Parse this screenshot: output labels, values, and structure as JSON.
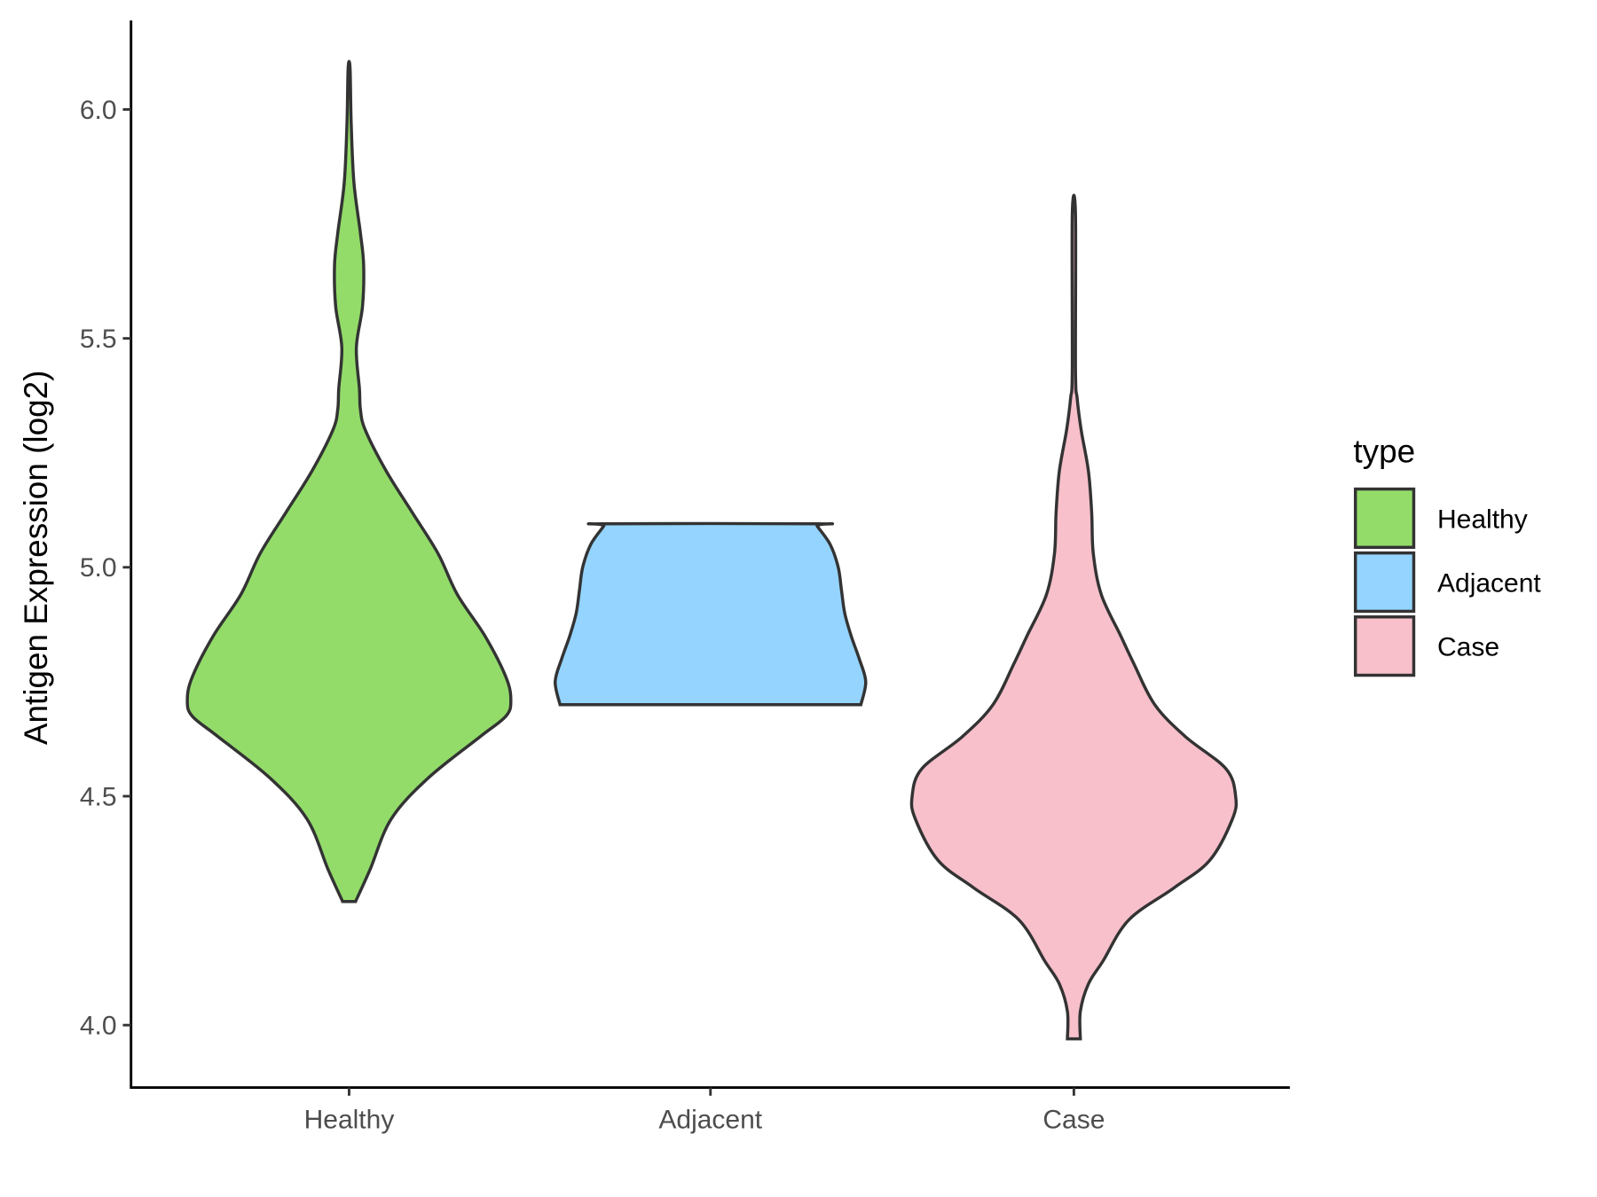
{
  "chart_data": {
    "type": "violin",
    "title": "",
    "xlabel": "",
    "ylabel": "Antigen Expression (log2)",
    "ylim": [
      3.88,
      6.2
    ],
    "yticks": [
      "4.0",
      "4.5",
      "5.0",
      "5.5",
      "6.0"
    ],
    "grid": false,
    "categories": [
      "Healthy",
      "Adjacent",
      "Case"
    ],
    "legend": {
      "title": "type",
      "placement": "right",
      "entries": [
        "Healthy",
        "Adjacent",
        "Case"
      ]
    },
    "series": [
      {
        "name": "Healthy",
        "color": "#93DC6A",
        "density_profile": [
          [
            4.27,
            0.04
          ],
          [
            4.34,
            0.13
          ],
          [
            4.45,
            0.26
          ],
          [
            4.54,
            0.49
          ],
          [
            4.63,
            0.81
          ],
          [
            4.675,
            0.97
          ],
          [
            4.71,
            1.0
          ],
          [
            4.76,
            0.97
          ],
          [
            4.85,
            0.84
          ],
          [
            4.94,
            0.67
          ],
          [
            5.03,
            0.55
          ],
          [
            5.12,
            0.39
          ],
          [
            5.21,
            0.23
          ],
          [
            5.3,
            0.1
          ],
          [
            5.345,
            0.07
          ],
          [
            5.39,
            0.064
          ],
          [
            5.48,
            0.045
          ],
          [
            5.57,
            0.083
          ],
          [
            5.66,
            0.09
          ],
          [
            5.73,
            0.07
          ],
          [
            5.84,
            0.03
          ],
          [
            5.97,
            0.013
          ],
          [
            6.09,
            0.006
          ]
        ]
      },
      {
        "name": "Adjacent",
        "color": "#94D4FF",
        "density_profile": [
          [
            4.7,
            0.93
          ],
          [
            4.75,
            0.96
          ],
          [
            4.8,
            0.92
          ],
          [
            4.85,
            0.87
          ],
          [
            4.9,
            0.83
          ],
          [
            4.95,
            0.81
          ],
          [
            5.0,
            0.79
          ],
          [
            5.05,
            0.74
          ],
          [
            5.09,
            0.66
          ],
          [
            5.095,
            0.66
          ]
        ]
      },
      {
        "name": "Case",
        "color": "#F7C0CB",
        "density_profile": [
          [
            3.97,
            0.04
          ],
          [
            4.03,
            0.04
          ],
          [
            4.09,
            0.09
          ],
          [
            4.14,
            0.18
          ],
          [
            4.23,
            0.34
          ],
          [
            4.3,
            0.62
          ],
          [
            4.36,
            0.84
          ],
          [
            4.45,
            0.98
          ],
          [
            4.5,
            1.0
          ],
          [
            4.56,
            0.94
          ],
          [
            4.63,
            0.69
          ],
          [
            4.7,
            0.5
          ],
          [
            4.79,
            0.37
          ],
          [
            4.85,
            0.29
          ],
          [
            4.94,
            0.17
          ],
          [
            5.03,
            0.12
          ],
          [
            5.12,
            0.11
          ],
          [
            5.21,
            0.09
          ],
          [
            5.3,
            0.045
          ],
          [
            5.37,
            0.02
          ],
          [
            5.43,
            0.01
          ],
          [
            5.77,
            0.01
          ]
        ]
      }
    ]
  }
}
